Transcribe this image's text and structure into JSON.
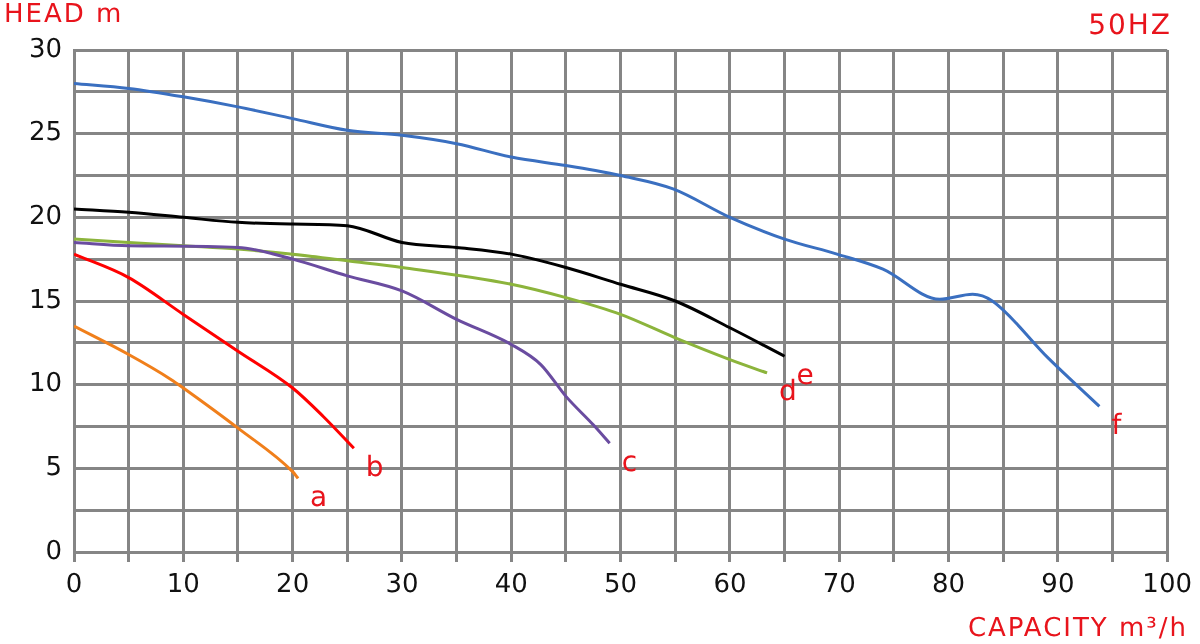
{
  "chart_data": {
    "type": "line",
    "title": "50HZ",
    "xlabel": "CAPACITY m³/h",
    "ylabel": "HEAD m",
    "xlim": [
      0,
      100
    ],
    "ylim": [
      0,
      30
    ],
    "xticks": [
      0,
      {
        "value": 5,
        "label": null
      },
      10,
      {
        "value": 15,
        "label": null
      },
      20,
      {
        "value": 25,
        "label": null
      },
      30,
      {
        "value": 35,
        "label": null
      },
      40,
      {
        "value": 45,
        "label": null
      },
      50,
      {
        "value": 55,
        "label": null
      },
      60,
      {
        "value": 65,
        "label": null
      },
      70,
      {
        "value": 75,
        "label": null
      },
      80,
      {
        "value": 85,
        "label": null
      },
      90,
      {
        "value": 95,
        "label": null
      },
      100
    ],
    "yticks": [
      0,
      {
        "value": 2.5,
        "label": null
      },
      5,
      {
        "value": 7.5,
        "label": null
      },
      10,
      {
        "value": 12.5,
        "label": null
      },
      15,
      {
        "value": 17.5,
        "label": null
      },
      20,
      {
        "value": 22.5,
        "label": null
      },
      25,
      {
        "value": 27.5,
        "label": null
      },
      30
    ],
    "grid": true,
    "legend": false,
    "marker": "none",
    "line_style": "solid",
    "series": [
      {
        "name": "a",
        "color": "#f07f1b",
        "x": [
          0,
          5,
          8.9,
          10,
          15,
          20,
          20.5
        ],
        "values": [
          13.5,
          11.8,
          10.3,
          9.8,
          7.4,
          4.8,
          4.4
        ]
      },
      {
        "name": "b",
        "color": "#ff0000",
        "x": [
          0,
          5,
          10,
          15,
          20,
          22.8,
          25.6
        ],
        "values": [
          17.8,
          16.4,
          14.2,
          12.0,
          9.8,
          8.1,
          6.2
        ]
      },
      {
        "name": "c",
        "color": "#6a4ca0",
        "x": [
          0,
          5,
          15,
          20,
          25,
          30,
          35,
          40,
          42.7,
          45,
          47.5,
          49
        ],
        "values": [
          18.5,
          18.3,
          18.2,
          17.5,
          16.5,
          15.6,
          13.9,
          12.4,
          11.2,
          9.3,
          7.6,
          6.5
        ]
      },
      {
        "name": "d",
        "color": "#8cb43c",
        "x": [
          0,
          10,
          15,
          20,
          25,
          30,
          40,
          45,
          50,
          55,
          60,
          63.4
        ],
        "values": [
          18.7,
          18.3,
          18.1,
          17.8,
          17.4,
          17.0,
          16.0,
          15.2,
          14.2,
          12.8,
          11.5,
          10.7
        ]
      },
      {
        "name": "e",
        "color": "#000000",
        "x": [
          0,
          5,
          10,
          15,
          20,
          25,
          30,
          35,
          40,
          45,
          50,
          55,
          60,
          65
        ],
        "values": [
          20.5,
          20.3,
          20.0,
          19.7,
          19.6,
          19.5,
          18.5,
          18.2,
          17.8,
          17.0,
          16.0,
          15.0,
          13.4,
          11.7
        ]
      },
      {
        "name": "f",
        "color": "#3a6fc0",
        "x": [
          0,
          5,
          10,
          15,
          20,
          25,
          30,
          35,
          40,
          45,
          47.7,
          50,
          54.8,
          60,
          65,
          69.8,
          74,
          79.2,
          82.2,
          84,
          89.1,
          93.8
        ],
        "values": [
          28.0,
          27.7,
          27.2,
          26.6,
          25.9,
          25.2,
          24.9,
          24.4,
          23.6,
          23.1,
          22.8,
          22.5,
          21.7,
          20.0,
          18.7,
          17.8,
          16.9,
          15.1,
          15.4,
          15.0,
          11.6,
          8.7
        ]
      }
    ]
  }
}
